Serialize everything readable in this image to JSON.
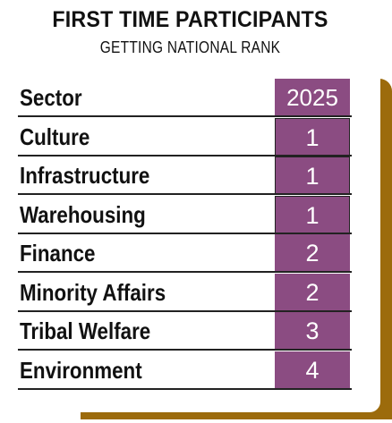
{
  "title": "FIRST TIME PARTICIPANTS",
  "subtitle": "GETTING NATIONAL RANK",
  "chart_data": {
    "type": "table",
    "title": "FIRST TIME PARTICIPANTS",
    "subtitle": "GETTING NATIONAL RANK",
    "columns": [
      "Sector",
      "2025"
    ],
    "categories": [
      "Culture",
      "Infrastructure",
      "Warehousing",
      "Finance",
      "Minority Affairs",
      "Tribal Welfare",
      "Environment"
    ],
    "values": [
      1,
      1,
      1,
      2,
      2,
      3,
      4
    ]
  },
  "colors": {
    "value_cell": "#8b4c82",
    "accent_shadow": "#9c6b0c"
  }
}
